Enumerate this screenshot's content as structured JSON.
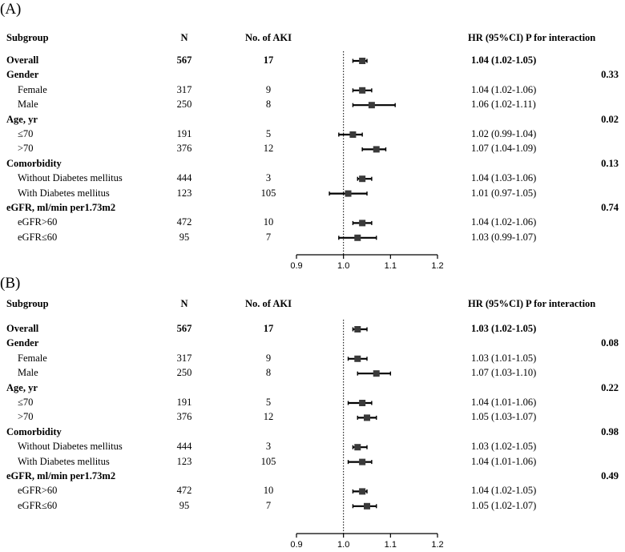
{
  "chart_data": [
    {
      "type": "forest",
      "panel_label": "(A)",
      "headers": {
        "subgroup": "Subgroup",
        "n": "N",
        "aki": "No. of AKI",
        "hr": "HR (95%CI)",
        "p": "P for interaction"
      },
      "x_ticks": [
        "0.9",
        "1.0",
        "1.1",
        "1.2"
      ],
      "xlim": [
        0.9,
        1.2
      ],
      "reference_line": 1.0,
      "rows": [
        {
          "label": "Overall",
          "kind": "bold",
          "n": "567",
          "aki": "17",
          "hr_text": "1.04 (1.02-1.05)",
          "hr": 1.04,
          "lo": 1.02,
          "hi": 1.05
        },
        {
          "label": "Gender",
          "kind": "group",
          "p": "0.33"
        },
        {
          "label": "Female",
          "kind": "sub",
          "n": "317",
          "aki": "9",
          "hr_text": "1.04 (1.02-1.06)",
          "hr": 1.04,
          "lo": 1.02,
          "hi": 1.06
        },
        {
          "label": "Male",
          "kind": "sub",
          "n": "250",
          "aki": "8",
          "hr_text": "1.06 (1.02-1.11)",
          "hr": 1.06,
          "lo": 1.02,
          "hi": 1.11
        },
        {
          "label": "Age, yr",
          "kind": "group",
          "p": "0.02"
        },
        {
          "label": "≤70",
          "kind": "sub",
          "n": "191",
          "aki": "5",
          "hr_text": "1.02 (0.99-1.04)",
          "hr": 1.02,
          "lo": 0.99,
          "hi": 1.04
        },
        {
          "label": ">70",
          "kind": "sub",
          "n": "376",
          "aki": "12",
          "hr_text": "1.07 (1.04-1.09)",
          "hr": 1.07,
          "lo": 1.04,
          "hi": 1.09
        },
        {
          "label": "Comorbidity",
          "kind": "group",
          "p": "0.13"
        },
        {
          "label": "Without Diabetes mellitus",
          "kind": "sub",
          "n": "444",
          "aki": "3",
          "hr_text": "1.04 (1.03-1.06)",
          "hr": 1.04,
          "lo": 1.03,
          "hi": 1.06
        },
        {
          "label": "With Diabetes mellitus",
          "kind": "sub",
          "n": "123",
          "aki": "105",
          "hr_text": "1.01 (0.97-1.05)",
          "hr": 1.01,
          "lo": 0.97,
          "hi": 1.05
        },
        {
          "label": "eGFR, ml/min per1.73m2",
          "kind": "group",
          "p": "0.74"
        },
        {
          "label": "eGFR>60",
          "kind": "sub",
          "n": "472",
          "aki": "10",
          "hr_text": "1.04 (1.02-1.06)",
          "hr": 1.04,
          "lo": 1.02,
          "hi": 1.06
        },
        {
          "label": "eGFR≤60",
          "kind": "sub",
          "n": "95",
          "aki": "7",
          "hr_text": "1.03 (0.99-1.07)",
          "hr": 1.03,
          "lo": 0.99,
          "hi": 1.07
        }
      ]
    },
    {
      "type": "forest",
      "panel_label": "(B)",
      "headers": {
        "subgroup": "Subgroup",
        "n": "N",
        "aki": "No. of AKI",
        "hr": "HR (95%CI)",
        "p": "P for interaction"
      },
      "x_ticks": [
        "0.9",
        "1.0",
        "1.1",
        "1.2"
      ],
      "xlim": [
        0.9,
        1.2
      ],
      "reference_line": 1.0,
      "rows": [
        {
          "label": "Overall",
          "kind": "bold",
          "n": "567",
          "aki": "17",
          "hr_text": "1.03 (1.02-1.05)",
          "hr": 1.03,
          "lo": 1.02,
          "hi": 1.05
        },
        {
          "label": "Gender",
          "kind": "group",
          "p": "0.08"
        },
        {
          "label": "Female",
          "kind": "sub",
          "n": "317",
          "aki": "9",
          "hr_text": "1.03 (1.01-1.05)",
          "hr": 1.03,
          "lo": 1.01,
          "hi": 1.05
        },
        {
          "label": "Male",
          "kind": "sub",
          "n": "250",
          "aki": "8",
          "hr_text": "1.07 (1.03-1.10)",
          "hr": 1.07,
          "lo": 1.03,
          "hi": 1.1
        },
        {
          "label": "Age, yr",
          "kind": "group",
          "p": "0.22"
        },
        {
          "label": "≤70",
          "kind": "sub",
          "n": "191",
          "aki": "5",
          "hr_text": "1.04 (1.01-1.06)",
          "hr": 1.04,
          "lo": 1.01,
          "hi": 1.06
        },
        {
          "label": ">70",
          "kind": "sub",
          "n": "376",
          "aki": "12",
          "hr_text": "1.05 (1.03-1.07)",
          "hr": 1.05,
          "lo": 1.03,
          "hi": 1.07
        },
        {
          "label": "Comorbidity",
          "kind": "group",
          "p": "0.98"
        },
        {
          "label": "Without Diabetes mellitus",
          "kind": "sub",
          "n": "444",
          "aki": "3",
          "hr_text": "1.03 (1.02-1.05)",
          "hr": 1.03,
          "lo": 1.02,
          "hi": 1.05
        },
        {
          "label": "With Diabetes mellitus",
          "kind": "sub",
          "n": "123",
          "aki": "105",
          "hr_text": "1.04 (1.01-1.06)",
          "hr": 1.04,
          "lo": 1.01,
          "hi": 1.06
        },
        {
          "label": "eGFR, ml/min per1.73m2",
          "kind": "group",
          "p": "0.49"
        },
        {
          "label": "eGFR>60",
          "kind": "sub",
          "n": "472",
          "aki": "10",
          "hr_text": "1.04 (1.02-1.05)",
          "hr": 1.04,
          "lo": 1.02,
          "hi": 1.05
        },
        {
          "label": "eGFR≤60",
          "kind": "sub",
          "n": "95",
          "aki": "7",
          "hr_text": "1.05 (1.02-1.07)",
          "hr": 1.05,
          "lo": 1.02,
          "hi": 1.07
        }
      ]
    }
  ]
}
